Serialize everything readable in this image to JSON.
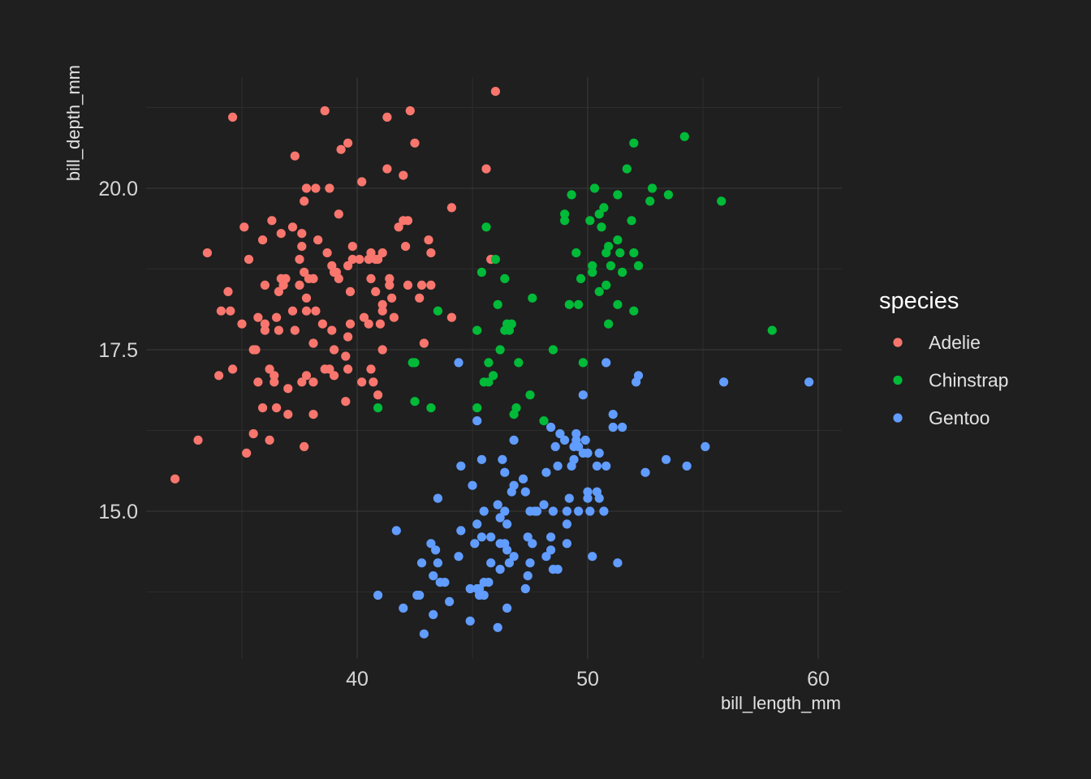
{
  "chart_data": {
    "type": "scatter",
    "xlabel": "bill_length_mm",
    "ylabel": "bill_depth_mm",
    "xlim": [
      31.5,
      61.2
    ],
    "ylim": [
      12.8,
      22.0
    ],
    "x_ticks": [
      40,
      50,
      60
    ],
    "x_tick_labels": [
      "40",
      "50",
      "60"
    ],
    "y_ticks": [
      15.0,
      17.5,
      20.0
    ],
    "y_tick_labels": [
      "15.0",
      "17.5",
      "20.0"
    ],
    "x_minor_ticks": [
      35,
      45,
      55
    ],
    "y_minor_ticks": [
      13.75,
      16.25,
      18.75,
      21.25
    ],
    "grid": true,
    "legend": {
      "title": "species",
      "position": "right"
    },
    "series": [
      {
        "name": "Adelie",
        "color": "#F8766D",
        "points": [
          [
            32.1,
            15.5
          ],
          [
            33.1,
            16.1
          ],
          [
            33.5,
            19.0
          ],
          [
            34.0,
            17.1
          ],
          [
            34.1,
            18.1
          ],
          [
            34.4,
            18.4
          ],
          [
            34.5,
            18.1
          ],
          [
            34.6,
            21.1
          ],
          [
            34.6,
            17.2
          ],
          [
            35.0,
            17.9
          ],
          [
            35.1,
            19.4
          ],
          [
            35.2,
            15.9
          ],
          [
            35.3,
            18.9
          ],
          [
            35.5,
            17.5
          ],
          [
            35.5,
            16.2
          ],
          [
            35.6,
            17.5
          ],
          [
            35.7,
            18.0
          ],
          [
            35.7,
            17.0
          ],
          [
            35.9,
            19.2
          ],
          [
            35.9,
            16.6
          ],
          [
            36.0,
            17.8
          ],
          [
            36.0,
            17.9
          ],
          [
            36.0,
            18.5
          ],
          [
            36.2,
            17.2
          ],
          [
            36.2,
            16.1
          ],
          [
            36.3,
            19.5
          ],
          [
            36.4,
            17.0
          ],
          [
            36.4,
            17.1
          ],
          [
            36.5,
            16.6
          ],
          [
            36.5,
            18.0
          ],
          [
            36.6,
            17.8
          ],
          [
            36.6,
            18.4
          ],
          [
            36.7,
            19.3
          ],
          [
            36.7,
            18.6
          ],
          [
            36.8,
            18.5
          ],
          [
            36.9,
            18.6
          ],
          [
            37.0,
            16.9
          ],
          [
            37.0,
            16.5
          ],
          [
            37.2,
            18.1
          ],
          [
            37.2,
            19.4
          ],
          [
            37.3,
            17.8
          ],
          [
            37.3,
            20.5
          ],
          [
            37.5,
            18.9
          ],
          [
            37.5,
            18.5
          ],
          [
            37.6,
            19.1
          ],
          [
            37.6,
            17.0
          ],
          [
            37.6,
            19.3
          ],
          [
            37.7,
            19.8
          ],
          [
            37.7,
            18.7
          ],
          [
            37.7,
            16.0
          ],
          [
            37.8,
            18.3
          ],
          [
            37.8,
            20.0
          ],
          [
            37.8,
            17.1
          ],
          [
            37.8,
            18.1
          ],
          [
            37.9,
            18.6
          ],
          [
            38.1,
            18.6
          ],
          [
            38.1,
            17.0
          ],
          [
            38.1,
            16.5
          ],
          [
            38.1,
            17.6
          ],
          [
            38.2,
            18.1
          ],
          [
            38.2,
            20.0
          ],
          [
            38.3,
            19.2
          ],
          [
            38.5,
            17.9
          ],
          [
            38.6,
            21.2
          ],
          [
            38.6,
            17.2
          ],
          [
            38.7,
            19.0
          ],
          [
            38.8,
            17.2
          ],
          [
            38.8,
            20.0
          ],
          [
            38.9,
            17.8
          ],
          [
            38.9,
            18.8
          ],
          [
            39.0,
            17.5
          ],
          [
            39.0,
            18.7
          ],
          [
            39.0,
            17.1
          ],
          [
            39.1,
            18.7
          ],
          [
            39.2,
            19.6
          ],
          [
            39.2,
            18.6
          ],
          [
            39.3,
            20.6
          ],
          [
            39.5,
            17.4
          ],
          [
            39.5,
            16.7
          ],
          [
            39.6,
            18.8
          ],
          [
            39.6,
            17.7
          ],
          [
            39.6,
            20.7
          ],
          [
            39.6,
            17.2
          ],
          [
            39.7,
            18.4
          ],
          [
            39.7,
            17.9
          ],
          [
            39.8,
            19.1
          ],
          [
            39.8,
            18.9
          ],
          [
            40.1,
            18.9
          ],
          [
            40.2,
            17.0
          ],
          [
            40.2,
            20.1
          ],
          [
            40.3,
            18.0
          ],
          [
            40.5,
            17.9
          ],
          [
            40.5,
            18.9
          ],
          [
            40.6,
            18.6
          ],
          [
            40.6,
            19.0
          ],
          [
            40.6,
            17.2
          ],
          [
            40.7,
            17.0
          ],
          [
            40.8,
            18.4
          ],
          [
            40.8,
            18.9
          ],
          [
            40.9,
            18.9
          ],
          [
            40.9,
            16.8
          ],
          [
            41.0,
            17.9
          ],
          [
            41.1,
            18.2
          ],
          [
            41.1,
            19.0
          ],
          [
            41.1,
            17.5
          ],
          [
            41.1,
            18.1
          ],
          [
            41.3,
            20.3
          ],
          [
            41.3,
            21.1
          ],
          [
            41.4,
            18.6
          ],
          [
            41.4,
            18.5
          ],
          [
            41.5,
            18.3
          ],
          [
            41.6,
            18.0
          ],
          [
            41.8,
            19.4
          ],
          [
            42.0,
            20.2
          ],
          [
            42.0,
            19.5
          ],
          [
            42.1,
            19.1
          ],
          [
            42.2,
            18.5
          ],
          [
            42.2,
            19.5
          ],
          [
            42.3,
            21.2
          ],
          [
            42.5,
            20.7
          ],
          [
            42.7,
            18.3
          ],
          [
            42.8,
            18.5
          ],
          [
            42.9,
            17.6
          ],
          [
            43.1,
            19.2
          ],
          [
            43.2,
            18.5
          ],
          [
            43.2,
            19.0
          ],
          [
            44.1,
            18.0
          ],
          [
            44.1,
            19.7
          ],
          [
            45.6,
            20.3
          ],
          [
            45.8,
            18.9
          ],
          [
            46.0,
            21.5
          ]
        ]
      },
      {
        "name": "Chinstrap",
        "color": "#00BA38",
        "points": [
          [
            40.9,
            16.6
          ],
          [
            42.4,
            17.3
          ],
          [
            42.5,
            16.7
          ],
          [
            42.5,
            17.3
          ],
          [
            43.2,
            16.6
          ],
          [
            43.5,
            18.1
          ],
          [
            45.2,
            17.8
          ],
          [
            45.2,
            16.6
          ],
          [
            45.4,
            18.7
          ],
          [
            45.5,
            17.0
          ],
          [
            45.6,
            19.4
          ],
          [
            45.7,
            17.0
          ],
          [
            45.7,
            17.3
          ],
          [
            45.9,
            17.1
          ],
          [
            46.0,
            18.9
          ],
          [
            46.1,
            18.2
          ],
          [
            46.2,
            17.5
          ],
          [
            46.4,
            17.8
          ],
          [
            46.4,
            18.6
          ],
          [
            46.5,
            17.9
          ],
          [
            46.6,
            17.8
          ],
          [
            46.7,
            17.9
          ],
          [
            46.8,
            16.5
          ],
          [
            46.9,
            16.6
          ],
          [
            47.0,
            17.3
          ],
          [
            47.5,
            16.8
          ],
          [
            47.6,
            18.3
          ],
          [
            48.1,
            16.4
          ],
          [
            48.5,
            17.5
          ],
          [
            49.0,
            19.5
          ],
          [
            49.0,
            19.6
          ],
          [
            49.2,
            18.2
          ],
          [
            49.3,
            19.9
          ],
          [
            49.5,
            19.0
          ],
          [
            49.6,
            18.2
          ],
          [
            49.7,
            18.6
          ],
          [
            49.8,
            17.3
          ],
          [
            50.1,
            19.5
          ],
          [
            50.2,
            18.8
          ],
          [
            50.2,
            18.7
          ],
          [
            50.3,
            20.0
          ],
          [
            50.5,
            19.6
          ],
          [
            50.5,
            18.4
          ],
          [
            50.6,
            19.4
          ],
          [
            50.7,
            19.7
          ],
          [
            50.8,
            18.5
          ],
          [
            50.8,
            19.0
          ],
          [
            50.9,
            19.1
          ],
          [
            50.9,
            17.9
          ],
          [
            51.0,
            18.8
          ],
          [
            51.3,
            18.2
          ],
          [
            51.3,
            19.2
          ],
          [
            51.3,
            19.9
          ],
          [
            51.4,
            19.0
          ],
          [
            51.5,
            18.7
          ],
          [
            51.7,
            20.3
          ],
          [
            51.9,
            19.5
          ],
          [
            52.0,
            18.1
          ],
          [
            52.0,
            19.0
          ],
          [
            52.0,
            20.7
          ],
          [
            52.2,
            18.8
          ],
          [
            52.7,
            19.8
          ],
          [
            52.8,
            20.0
          ],
          [
            53.5,
            19.9
          ],
          [
            54.2,
            20.8
          ],
          [
            55.8,
            19.8
          ],
          [
            58.0,
            17.8
          ]
        ]
      },
      {
        "name": "Gentoo",
        "color": "#619CFF",
        "points": [
          [
            40.9,
            13.7
          ],
          [
            41.7,
            14.7
          ],
          [
            42.0,
            13.5
          ],
          [
            42.6,
            13.7
          ],
          [
            42.7,
            13.7
          ],
          [
            42.8,
            14.2
          ],
          [
            42.9,
            13.1
          ],
          [
            43.2,
            14.5
          ],
          [
            43.3,
            14.0
          ],
          [
            43.3,
            13.4
          ],
          [
            43.4,
            14.4
          ],
          [
            43.5,
            14.2
          ],
          [
            43.5,
            15.2
          ],
          [
            43.6,
            13.9
          ],
          [
            43.8,
            13.9
          ],
          [
            44.0,
            13.6
          ],
          [
            44.4,
            14.3
          ],
          [
            44.5,
            14.7
          ],
          [
            44.5,
            15.7
          ],
          [
            44.4,
            17.3
          ],
          [
            44.9,
            13.8
          ],
          [
            44.9,
            13.3
          ],
          [
            45.0,
            15.4
          ],
          [
            45.1,
            14.5
          ],
          [
            45.2,
            14.8
          ],
          [
            45.2,
            13.8
          ],
          [
            45.2,
            16.4
          ],
          [
            45.3,
            13.7
          ],
          [
            45.3,
            13.8
          ],
          [
            45.4,
            14.6
          ],
          [
            45.4,
            15.8
          ],
          [
            45.5,
            13.7
          ],
          [
            45.5,
            15.0
          ],
          [
            45.5,
            13.9
          ],
          [
            45.7,
            13.9
          ],
          [
            45.8,
            14.6
          ],
          [
            45.8,
            14.2
          ],
          [
            46.1,
            15.1
          ],
          [
            46.1,
            13.2
          ],
          [
            46.2,
            14.5
          ],
          [
            46.2,
            14.1
          ],
          [
            46.2,
            14.9
          ],
          [
            46.3,
            15.8
          ],
          [
            46.4,
            15.6
          ],
          [
            46.4,
            15.0
          ],
          [
            46.4,
            14.5
          ],
          [
            46.5,
            13.5
          ],
          [
            46.5,
            14.8
          ],
          [
            46.5,
            14.4
          ],
          [
            46.6,
            14.2
          ],
          [
            46.7,
            15.3
          ],
          [
            46.8,
            15.4
          ],
          [
            46.8,
            14.3
          ],
          [
            46.8,
            16.1
          ],
          [
            47.2,
            15.5
          ],
          [
            47.3,
            15.3
          ],
          [
            47.3,
            13.8
          ],
          [
            47.4,
            14.6
          ],
          [
            47.4,
            14.0
          ],
          [
            47.5,
            14.2
          ],
          [
            47.5,
            15.0
          ],
          [
            47.6,
            14.5
          ],
          [
            47.7,
            15.0
          ],
          [
            47.8,
            15.0
          ],
          [
            48.1,
            15.1
          ],
          [
            48.2,
            14.3
          ],
          [
            48.2,
            15.6
          ],
          [
            48.4,
            14.6
          ],
          [
            48.4,
            14.4
          ],
          [
            48.4,
            16.3
          ],
          [
            48.5,
            14.1
          ],
          [
            48.5,
            15.0
          ],
          [
            48.6,
            16.0
          ],
          [
            48.7,
            14.1
          ],
          [
            48.7,
            15.7
          ],
          [
            48.8,
            16.2
          ],
          [
            49.0,
            16.1
          ],
          [
            49.1,
            15.0
          ],
          [
            49.1,
            14.5
          ],
          [
            49.1,
            14.8
          ],
          [
            49.2,
            15.2
          ],
          [
            49.3,
            15.7
          ],
          [
            49.4,
            15.8
          ],
          [
            49.4,
            16.0
          ],
          [
            49.5,
            16.1
          ],
          [
            49.5,
            16.2
          ],
          [
            49.6,
            15.0
          ],
          [
            49.6,
            16.0
          ],
          [
            49.8,
            15.9
          ],
          [
            49.8,
            16.8
          ],
          [
            49.9,
            16.1
          ],
          [
            50.0,
            15.2
          ],
          [
            50.0,
            15.3
          ],
          [
            50.0,
            15.9
          ],
          [
            50.1,
            15.0
          ],
          [
            50.2,
            14.3
          ],
          [
            50.4,
            15.3
          ],
          [
            50.4,
            15.7
          ],
          [
            50.5,
            15.9
          ],
          [
            50.5,
            15.2
          ],
          [
            50.7,
            15.0
          ],
          [
            50.8,
            15.7
          ],
          [
            50.8,
            17.3
          ],
          [
            51.1,
            16.3
          ],
          [
            51.1,
            16.5
          ],
          [
            51.3,
            14.2
          ],
          [
            51.5,
            16.3
          ],
          [
            52.1,
            17.0
          ],
          [
            52.2,
            17.1
          ],
          [
            52.5,
            15.6
          ],
          [
            53.4,
            15.8
          ],
          [
            54.3,
            15.7
          ],
          [
            55.1,
            16.0
          ],
          [
            55.9,
            17.0
          ],
          [
            59.6,
            17.0
          ]
        ]
      }
    ]
  }
}
